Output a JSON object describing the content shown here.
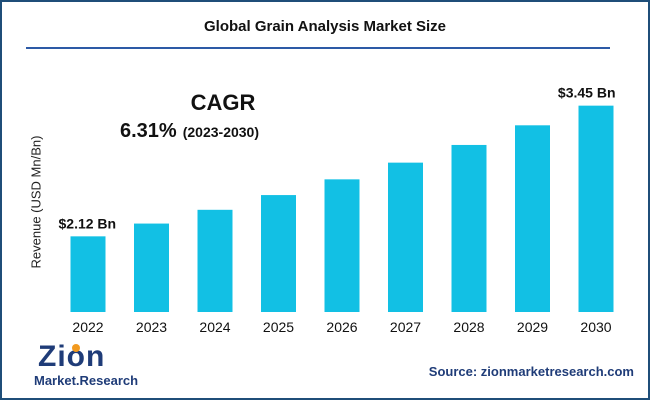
{
  "chart_data": {
    "type": "bar",
    "title": "Global Grain Analysis Market Size",
    "ylabel": "Revenue (USD Mn/Bn)",
    "categories": [
      "2022",
      "2023",
      "2024",
      "2025",
      "2026",
      "2027",
      "2028",
      "2029",
      "2030"
    ],
    "values": [
      2.12,
      2.25,
      2.39,
      2.54,
      2.7,
      2.87,
      3.05,
      3.25,
      3.45
    ],
    "value_labels": {
      "2022": "$2.12 Bn",
      "2030": "$3.45 Bn"
    },
    "ylim": [
      1.35,
      3.65
    ],
    "grid": false,
    "bar_color": "#12c0e4",
    "cagr": {
      "label": "CAGR",
      "value": "6.31%",
      "period": "(2023-2030)"
    }
  },
  "logo": {
    "word": "Zion",
    "sub": "Market.Research"
  },
  "source": "Source: zionmarketresearch.com",
  "colors": {
    "title_rule": "#2d5aa6",
    "brand": "#1f3c78",
    "border": "#1f4e79"
  }
}
